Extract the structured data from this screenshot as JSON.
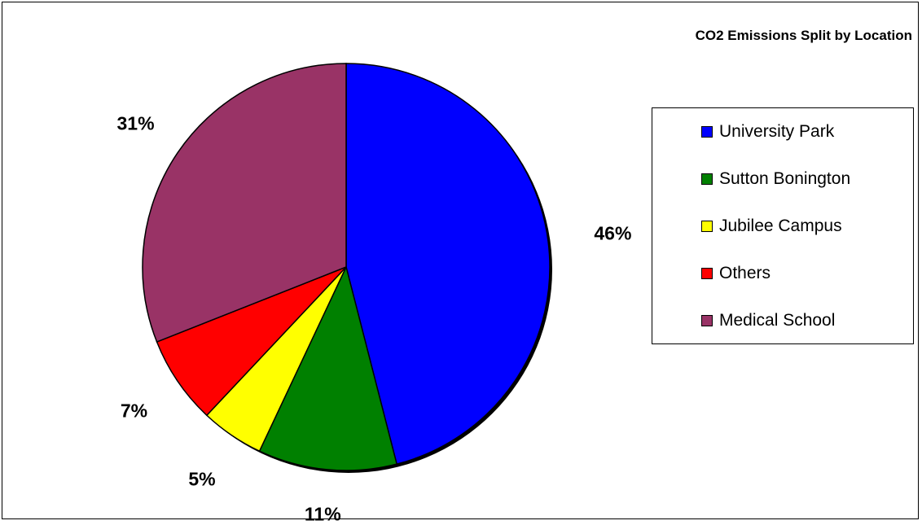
{
  "chart_data": {
    "type": "pie",
    "title": "CO2 Emissions Split by Location",
    "slices": [
      {
        "name": "University Park",
        "value": 46,
        "label": "46%",
        "color": "#0000FF"
      },
      {
        "name": "Sutton Bonington",
        "value": 11,
        "label": "11%",
        "color": "#008000"
      },
      {
        "name": "Jubilee Campus",
        "value": 5,
        "label": "5%",
        "color": "#FFFF00"
      },
      {
        "name": "Others",
        "value": 7,
        "label": "7%",
        "color": "#FF0000"
      },
      {
        "name": "Medical School",
        "value": 31,
        "label": "31%",
        "color": "#993366"
      }
    ],
    "legend_position": "right",
    "start_angle": "12 o'clock",
    "direction": "clockwise"
  }
}
